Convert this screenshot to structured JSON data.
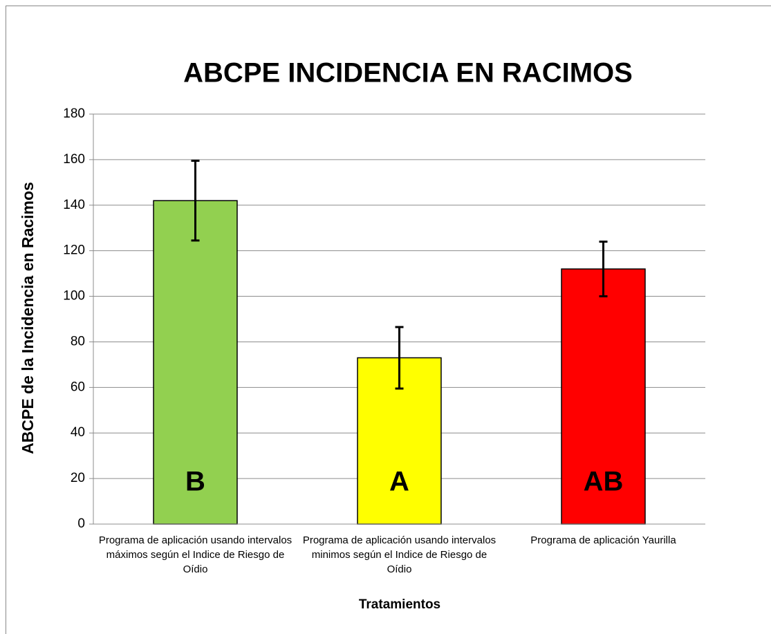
{
  "chart_data": {
    "type": "bar",
    "title": "ABCPE INCIDENCIA EN RACIMOS",
    "x_label": "Tratamientos",
    "y_label": "ABCPE de la Incidencia en Racimos",
    "categories": [
      "Programa de aplicación usando intervalos máximos según el Indice de Riesgo de Oídio",
      "Programa de aplicación usando intervalos minimos según el Indice de Riesgo de Oídio",
      "Programa de aplicación Yaurilla"
    ],
    "values": [
      142,
      73,
      112
    ],
    "errors": [
      17.5,
      13.5,
      12
    ],
    "colors": [
      "#92d050",
      "#ffff00",
      "#ff0000"
    ],
    "bar_labels": [
      "B",
      "A",
      "AB"
    ],
    "ylim": [
      0,
      180
    ],
    "yticks": [
      0,
      20,
      40,
      60,
      80,
      100,
      120,
      140,
      160,
      180
    ],
    "grid": true
  }
}
